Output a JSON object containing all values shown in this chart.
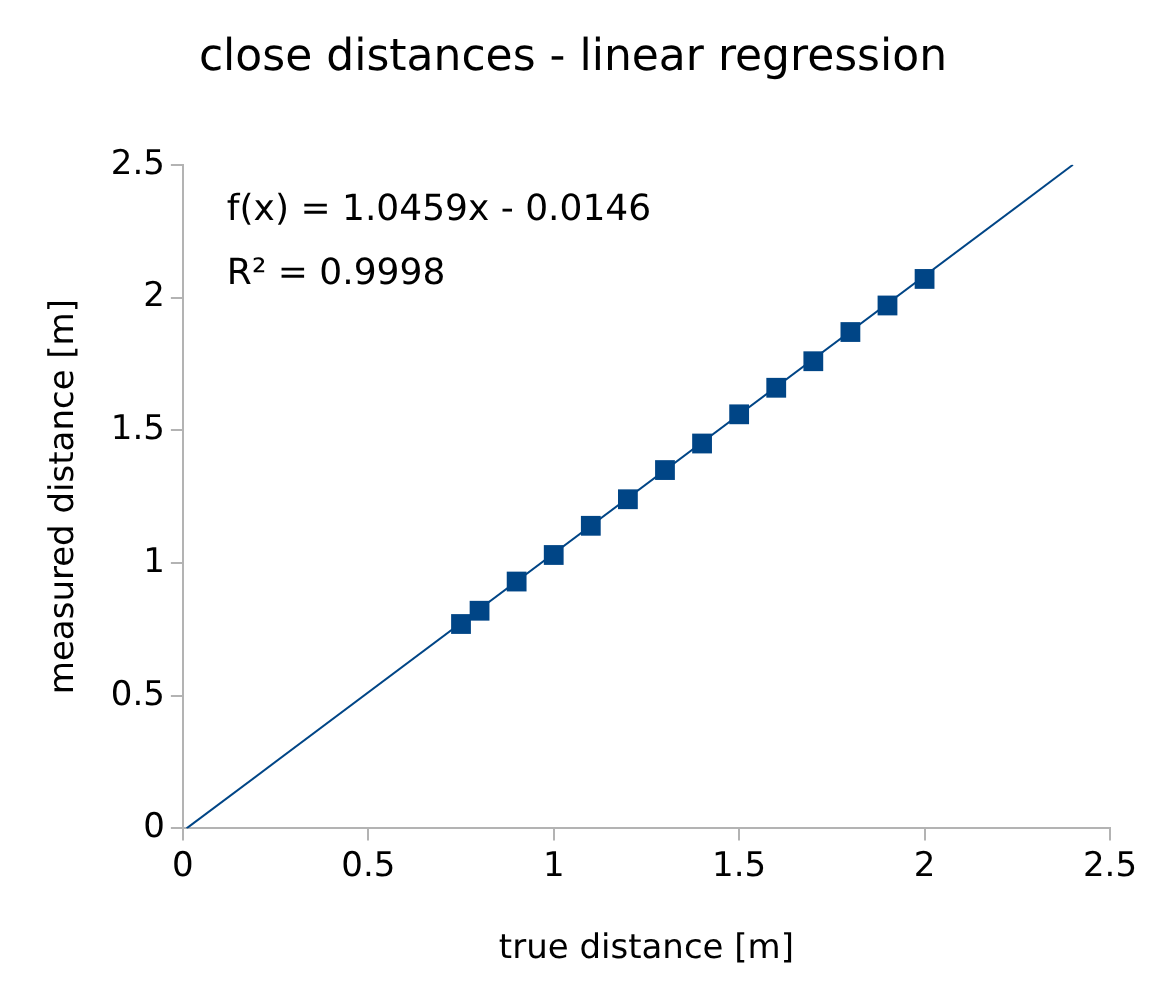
{
  "chart_data": {
    "type": "scatter",
    "title": "close distances - linear regression",
    "xlabel": "true distance [m]",
    "ylabel": "measured distance [m]",
    "annotations": [
      "f(x) = 1.0459x - 0.0146",
      "R² = 0.9998"
    ],
    "series": [
      {
        "color": "#004586",
        "marker": "square",
        "x": [
          0.75,
          0.8,
          0.9,
          1.0,
          1.1,
          1.2,
          1.3,
          1.4,
          1.5,
          1.6,
          1.7,
          1.8,
          1.9,
          2.0
        ],
        "values": [
          0.77,
          0.82,
          0.93,
          1.03,
          1.14,
          1.24,
          1.35,
          1.45,
          1.56,
          1.66,
          1.76,
          1.87,
          1.97,
          2.07
        ]
      },
      {
        "type": "line",
        "color": "#004586",
        "marker": "none",
        "x": [
          0.01,
          2.4
        ],
        "values": [
          0,
          2.5
        ]
      }
    ],
    "xlim": [
      0,
      2.5
    ],
    "xticks": [
      0,
      0.5,
      1,
      1.5,
      2,
      2.5
    ],
    "ylim": [
      0,
      2.5
    ],
    "yticks": [
      0,
      0.5,
      1,
      1.5,
      2,
      2.5
    ],
    "grid": false,
    "legend": false
  }
}
